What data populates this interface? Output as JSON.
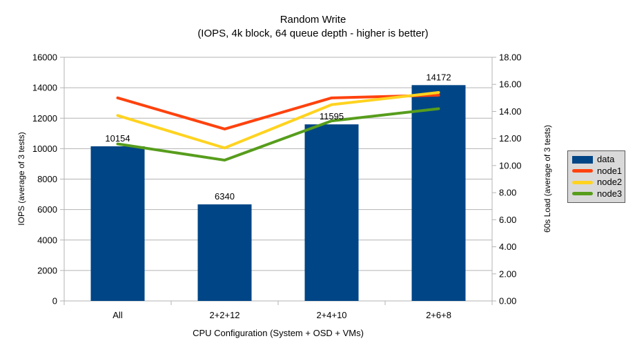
{
  "title": "Random Write",
  "subtitle": "(IOPS, 4k block, 64 queue depth - higher is better)",
  "chart_data": {
    "type": "bar+line combo",
    "categories": [
      "All",
      "2+2+12",
      "2+4+10",
      "2+6+8"
    ],
    "series": [
      {
        "name": "data",
        "type": "bar",
        "axis": "left",
        "color": "#004586",
        "values": [
          10154,
          6340,
          11595,
          14172
        ],
        "value_labels": [
          "10154",
          "6340",
          "11595",
          "14172"
        ]
      },
      {
        "name": "node1",
        "type": "line",
        "axis": "right",
        "color": "#ff420e",
        "values": [
          15.0,
          12.7,
          15.0,
          15.2
        ]
      },
      {
        "name": "node2",
        "type": "line",
        "axis": "right",
        "color": "#ffd320",
        "values": [
          13.7,
          11.3,
          14.5,
          15.4
        ]
      },
      {
        "name": "node3",
        "type": "line",
        "axis": "right",
        "color": "#579d1c",
        "values": [
          11.6,
          10.4,
          13.3,
          14.2
        ]
      }
    ],
    "x_axis": {
      "label": "CPU Configuration (System + OSD + VMs)",
      "tick_labels": [
        "All",
        "2+2+12",
        "2+4+10",
        "2+6+8"
      ]
    },
    "left_axis": {
      "label": "IOPS (average of 3 tests)",
      "min": 0,
      "max": 16000,
      "step": 2000,
      "tick_labels": [
        "0",
        "2000",
        "4000",
        "6000",
        "8000",
        "10000",
        "12000",
        "14000",
        "16000"
      ]
    },
    "right_axis": {
      "label": "60s Load (average of 3 tests)",
      "min": 0,
      "max": 18,
      "step": 2,
      "tick_labels": [
        "0.00",
        "2.00",
        "4.00",
        "6.00",
        "8.00",
        "10.00",
        "12.00",
        "14.00",
        "16.00",
        "18.00"
      ]
    },
    "legend": {
      "position": "right",
      "entries": [
        "data",
        "node1",
        "node2",
        "node3"
      ],
      "background": "#d9d9d9",
      "border_color": "#595959"
    },
    "grid": true,
    "colors": {
      "grid": "#b3b3b3",
      "axis": "#b3b3b3",
      "text": "#000000",
      "background": "#ffffff"
    }
  }
}
